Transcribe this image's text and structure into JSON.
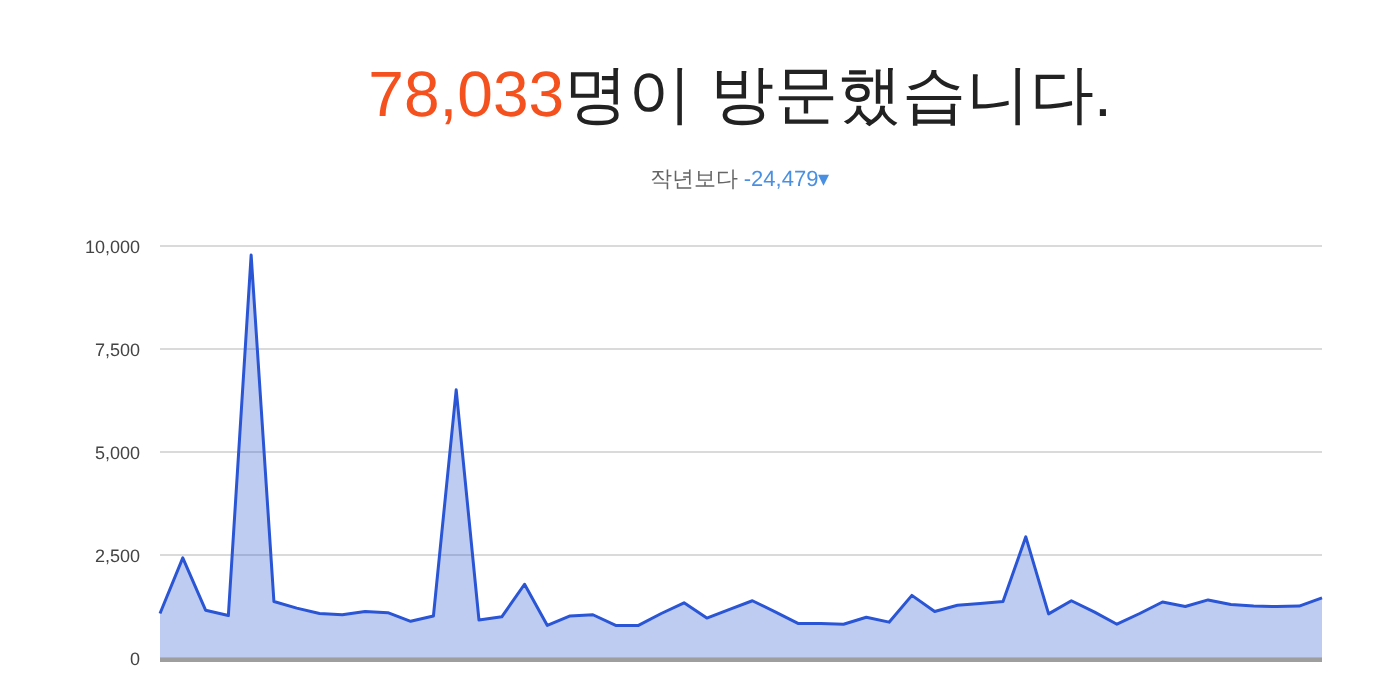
{
  "chart_data": {
    "type": "area",
    "title": "78,033명이 방문했습니다.",
    "subtitle": "작년보다 -24,479▾",
    "categories": [
      null,
      null,
      null,
      null,
      null,
      null,
      null,
      null,
      null,
      null,
      null,
      null,
      null,
      null,
      null,
      null,
      null,
      null,
      null,
      null,
      null,
      null,
      null,
      null,
      null,
      null,
      null,
      null,
      null,
      null,
      null,
      null,
      null,
      null,
      null,
      null,
      null,
      null,
      null,
      null,
      null,
      null,
      null,
      null,
      null,
      null,
      null,
      null,
      null,
      null,
      null,
      null
    ],
    "series": [
      {
        "color": "#2a55d4",
        "values": [
          1080,
          2430,
          1160,
          1030,
          9780,
          1370,
          1210,
          1080,
          1050,
          1130,
          1100,
          890,
          1020,
          6510,
          920,
          1000,
          1790,
          790,
          1020,
          1050,
          790,
          790,
          1080,
          1340,
          970,
          1180,
          1390,
          1120,
          840,
          840,
          820,
          990,
          870,
          1520,
          1130,
          1280,
          1320,
          1370,
          2940,
          1070,
          1390,
          1120,
          820,
          1080,
          1360,
          1250,
          1410,
          1300,
          1260,
          1250,
          1260,
          1460
        ]
      }
    ],
    "ylim": [
      0,
      10000
    ],
    "yticks": [
      0,
      {
        "value": 2500,
        "label": "2,500"
      },
      {
        "value": 5000,
        "label": "5,000"
      },
      {
        "value": 7500,
        "label": "7,500"
      },
      {
        "value": 10000,
        "label": "10,000"
      }
    ],
    "grid": "y"
  }
}
